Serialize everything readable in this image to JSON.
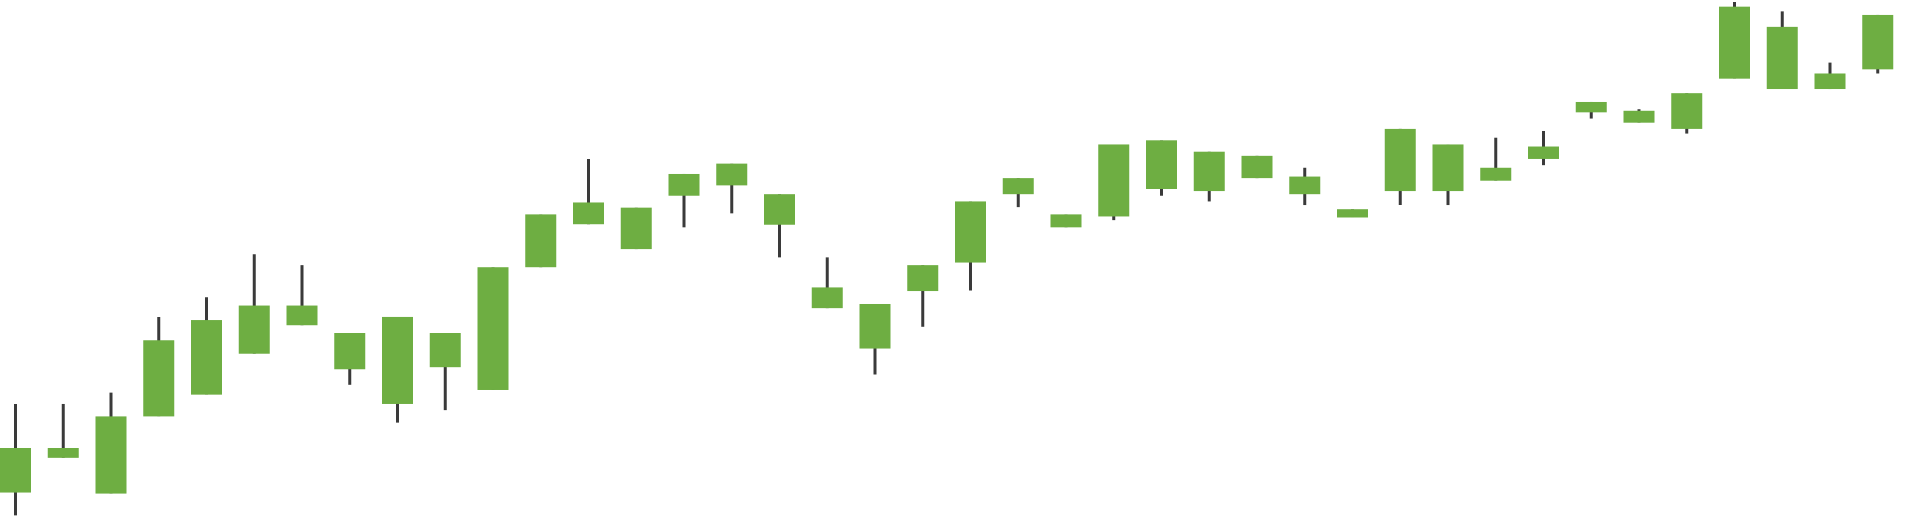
{
  "chart_data": {
    "type": "candlestick",
    "title": "",
    "xlabel": "",
    "ylabel": "",
    "grid": false,
    "legend": "none",
    "x": [
      1,
      2,
      3,
      4,
      5,
      6,
      7,
      8,
      9,
      10,
      11,
      12,
      13,
      14,
      15,
      16,
      17,
      18,
      19,
      20,
      21,
      22,
      23,
      24,
      25,
      26,
      27,
      28,
      29,
      30,
      31,
      32,
      33,
      34,
      35,
      36,
      37,
      38,
      39,
      40
    ],
    "ylim": [
      0,
      100
    ],
    "candles": [
      {
        "open": 5.3,
        "high": 22.4,
        "low": 0.9,
        "close": 13.9
      },
      {
        "open": 12.0,
        "high": 22.4,
        "low": 12.0,
        "close": 13.9
      },
      {
        "open": 5.1,
        "high": 24.6,
        "low": 5.1,
        "close": 20.0
      },
      {
        "open": 20.0,
        "high": 39.2,
        "low": 20.0,
        "close": 34.7
      },
      {
        "open": 24.2,
        "high": 43.0,
        "low": 24.2,
        "close": 38.6
      },
      {
        "open": 32.1,
        "high": 51.3,
        "low": 32.1,
        "close": 41.4
      },
      {
        "open": 41.4,
        "high": 49.2,
        "low": 37.6,
        "close": 37.6
      },
      {
        "open": 29.1,
        "high": 36.1,
        "low": 26.1,
        "close": 36.1
      },
      {
        "open": 22.4,
        "high": 39.2,
        "low": 18.8,
        "close": 39.2
      },
      {
        "open": 29.5,
        "high": 36.1,
        "low": 21.2,
        "close": 36.1
      },
      {
        "open": 25.1,
        "high": 48.8,
        "low": 25.1,
        "close": 48.8
      },
      {
        "open": 48.8,
        "high": 59.0,
        "low": 48.8,
        "close": 59.0
      },
      {
        "open": 57.1,
        "high": 69.7,
        "low": 57.1,
        "close": 61.3
      },
      {
        "open": 52.3,
        "high": 60.3,
        "low": 52.3,
        "close": 60.3
      },
      {
        "open": 62.6,
        "high": 66.8,
        "low": 56.5,
        "close": 66.8
      },
      {
        "open": 64.6,
        "high": 68.8,
        "low": 59.2,
        "close": 68.8
      },
      {
        "open": 62.9,
        "high": 62.9,
        "low": 50.7,
        "close": 57.0
      },
      {
        "open": 40.9,
        "high": 50.7,
        "low": 40.9,
        "close": 44.9
      },
      {
        "open": 33.1,
        "high": 41.7,
        "low": 28.1,
        "close": 41.7
      },
      {
        "open": 44.2,
        "high": 49.2,
        "low": 37.3,
        "close": 49.2
      },
      {
        "open": 49.7,
        "high": 61.5,
        "low": 44.3,
        "close": 61.5
      },
      {
        "open": 62.9,
        "high": 66.0,
        "low": 60.4,
        "close": 66.0
      },
      {
        "open": 56.5,
        "high": 59.0,
        "low": 56.5,
        "close": 59.0
      },
      {
        "open": 58.6,
        "high": 72.5,
        "low": 57.9,
        "close": 72.5
      },
      {
        "open": 73.3,
        "high": 73.3,
        "low": 62.6,
        "close": 63.9
      },
      {
        "open": 63.5,
        "high": 71.1,
        "low": 61.5,
        "close": 71.1
      },
      {
        "open": 66.0,
        "high": 70.3,
        "low": 66.0,
        "close": 70.3
      },
      {
        "open": 62.9,
        "high": 68.0,
        "low": 60.8,
        "close": 66.3
      },
      {
        "open": 58.4,
        "high": 60.0,
        "low": 58.4,
        "close": 60.0
      },
      {
        "open": 63.5,
        "high": 75.5,
        "low": 60.8,
        "close": 75.5
      },
      {
        "open": 63.5,
        "high": 72.5,
        "low": 60.8,
        "close": 72.5
      },
      {
        "open": 65.5,
        "high": 73.8,
        "low": 65.5,
        "close": 68.0
      },
      {
        "open": 69.7,
        "high": 75.1,
        "low": 68.5,
        "close": 72.1
      },
      {
        "open": 78.7,
        "high": 80.7,
        "low": 77.5,
        "close": 80.7
      },
      {
        "open": 76.7,
        "high": 79.3,
        "low": 76.7,
        "close": 79.0
      },
      {
        "open": 75.5,
        "high": 82.4,
        "low": 74.6,
        "close": 82.4
      },
      {
        "open": 85.2,
        "high": 100.0,
        "low": 85.2,
        "close": 99.1
      },
      {
        "open": 83.2,
        "high": 98.2,
        "low": 83.2,
        "close": 95.2
      },
      {
        "open": 83.2,
        "high": 88.3,
        "low": 83.2,
        "close": 86.2
      },
      {
        "open": 97.5,
        "high": 97.5,
        "low": 86.2,
        "close": 87.0
      }
    ],
    "colors": {
      "body": "#6eae42",
      "wick": "#3a3a3a",
      "background": "#ffffff"
    }
  }
}
